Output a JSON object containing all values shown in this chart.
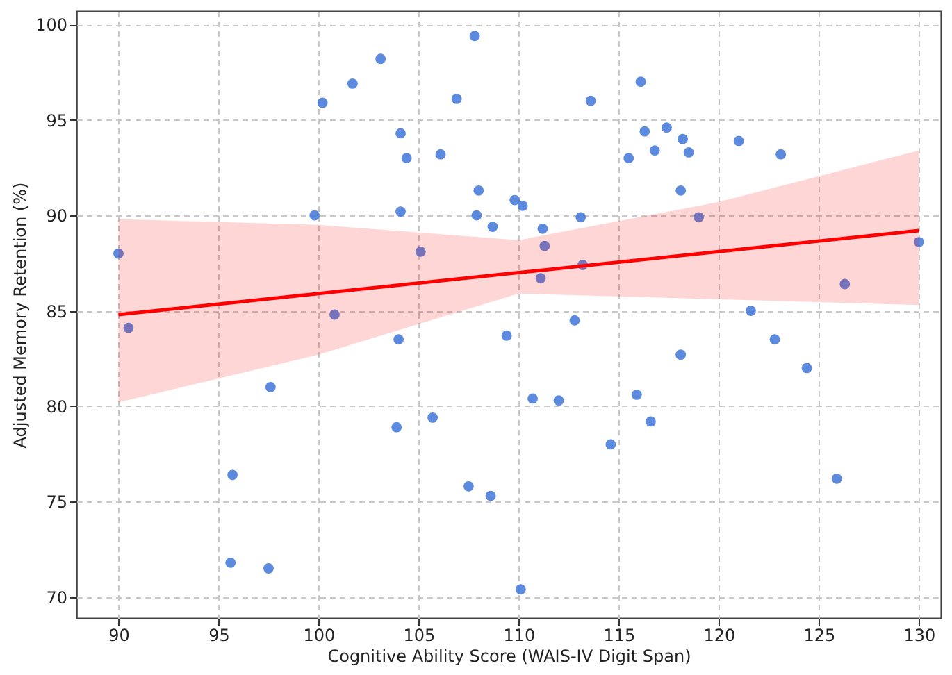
{
  "chart_data": {
    "type": "scatter",
    "xlabel": "Cognitive Ability Score (WAIS-IV Digit Span)",
    "ylabel": "Adjusted Memory Retention (%)",
    "xlim": [
      87.9,
      131.1
    ],
    "ylim": [
      68.9,
      100.7
    ],
    "xticks": [
      90,
      95,
      100,
      105,
      110,
      115,
      120,
      125,
      130
    ],
    "yticks": [
      70,
      75,
      80,
      85,
      90,
      95,
      100
    ],
    "grid": true,
    "series": [
      {
        "marker": "circle",
        "color": "#3f76d9",
        "x": [
          90,
          90.5,
          95.7,
          95.6,
          97.5,
          97.6,
          99.8,
          100.2,
          100.8,
          101.7,
          103.1,
          103.9,
          104.0,
          104.1,
          104.1,
          104.4,
          105.1,
          105.7,
          106.1,
          106.9,
          107.5,
          107.8,
          107.9,
          108.0,
          108.6,
          108.7,
          109.4,
          109.8,
          110.1,
          110.2,
          110.7,
          111.1,
          111.2,
          111.3,
          112.0,
          112.8,
          113.1,
          113.2,
          113.6,
          114.6,
          115.5,
          115.9,
          116.1,
          116.3,
          116.6,
          116.8,
          117.4,
          118.1,
          118.1,
          118.2,
          118.5,
          119.0,
          121.0,
          121.6,
          122.8,
          123.1,
          124.4,
          125.9,
          126.3,
          130.0
        ],
        "values": [
          88.0,
          84.1,
          76.4,
          71.8,
          71.5,
          81.0,
          90.0,
          95.9,
          84.8,
          96.9,
          98.2,
          78.9,
          83.5,
          90.2,
          94.3,
          93.0,
          88.1,
          79.4,
          93.2,
          96.1,
          75.8,
          99.4,
          90.0,
          91.3,
          75.3,
          89.4,
          83.7,
          90.8,
          70.4,
          90.5,
          80.4,
          86.7,
          89.3,
          88.4,
          80.3,
          84.5,
          89.9,
          87.4,
          96.0,
          78.0,
          93.0,
          80.6,
          97.0,
          94.4,
          79.2,
          93.4,
          94.6,
          91.3,
          82.7,
          94.0,
          93.3,
          89.9,
          93.9,
          85.0,
          83.5,
          93.2,
          82.0,
          76.2,
          86.4,
          88.6
        ]
      },
      {
        "type": "line",
        "color": "#ff0000",
        "line_style": "solid",
        "x": [
          90,
          100,
          110,
          120,
          130
        ],
        "values": [
          84.8,
          85.9,
          87.0,
          88.1,
          89.2
        ],
        "lower": [
          80.2,
          82.7,
          85.9,
          85.6,
          85.3
        ],
        "upper": [
          89.8,
          89.5,
          88.7,
          90.7,
          93.4
        ]
      }
    ]
  }
}
